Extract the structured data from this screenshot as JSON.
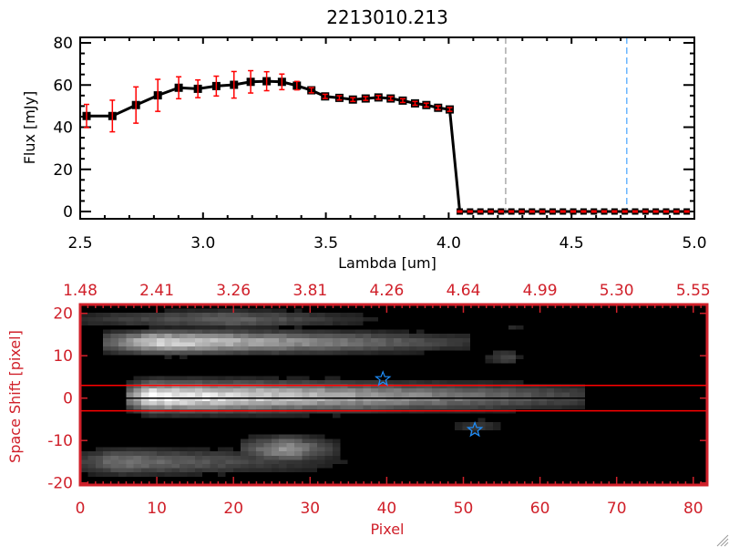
{
  "chart_data": [
    {
      "type": "line",
      "title": "2213010.213",
      "xlabel": "Lambda [um]",
      "ylabel": "Flux [mJy]",
      "xlim": [
        2.5,
        5.0
      ],
      "ylim": [
        -3.5,
        82.6
      ],
      "xticks": [
        "2.5",
        "3.0",
        "3.5",
        "4.0",
        "4.5",
        "5.0"
      ],
      "yticks": [
        "0",
        "20",
        "40",
        "60",
        "80"
      ],
      "series": [
        {
          "name": "flux",
          "color": "#000000",
          "error_color": "#ff0000",
          "x": [
            2.526,
            2.631,
            2.727,
            2.816,
            2.901,
            2.979,
            3.054,
            3.126,
            3.194,
            3.259,
            3.321,
            3.382,
            3.441,
            3.497,
            3.555,
            3.61,
            3.662,
            3.714,
            3.764,
            3.813,
            3.863,
            3.909,
            3.957,
            4.004,
            4.045,
            4.087,
            4.129,
            4.171,
            4.213,
            4.255,
            4.297,
            4.339,
            4.381,
            4.423,
            4.465,
            4.507,
            4.549,
            4.591,
            4.633,
            4.675,
            4.717,
            4.759,
            4.801,
            4.843,
            4.885,
            4.927,
            4.969
          ],
          "y": [
            45.3,
            45.3,
            50.5,
            55.1,
            58.7,
            58.2,
            59.5,
            60.1,
            61.5,
            61.8,
            61.5,
            59.7,
            57.5,
            54.6,
            53.9,
            53.1,
            53.6,
            54.1,
            53.6,
            52.6,
            51.3,
            50.5,
            49.2,
            48.4,
            0,
            0,
            0,
            0,
            0,
            0,
            0,
            0,
            0,
            0,
            0,
            0,
            0,
            0,
            0,
            0,
            0,
            0,
            0,
            0,
            0,
            0,
            0
          ],
          "yerr": [
            5.5,
            7.5,
            8.6,
            7.6,
            5.2,
            4.2,
            4.7,
            6.3,
            5.3,
            4.5,
            3.7,
            2.0,
            1.2,
            1.0,
            1.0,
            0.9,
            0.9,
            0.9,
            0.9,
            0.9,
            0.9,
            0.9,
            0.9,
            0.9,
            0.3,
            0.3,
            0.3,
            0.3,
            0.3,
            0.3,
            0.3,
            0.3,
            0.3,
            0.3,
            0.3,
            0.3,
            0.3,
            0.3,
            0.3,
            0.3,
            0.3,
            0.3,
            0.3,
            0.3,
            0.3,
            0.3,
            0.3
          ]
        }
      ],
      "vlines": [
        {
          "x": 4.232,
          "color": "#808080",
          "style": "dashed"
        },
        {
          "x": 4.725,
          "color": "#1e90ff",
          "style": "dashed"
        }
      ]
    },
    {
      "type": "heatmap",
      "xlabel": "Pixel",
      "ylabel": "Space Shift [pixel]",
      "axis_color": "#d0202a",
      "xlim": [
        0,
        81.8
      ],
      "ylim": [
        -20.8,
        22.2
      ],
      "xticks": [
        "0",
        "10",
        "20",
        "30",
        "40",
        "50",
        "60",
        "70",
        "80"
      ],
      "yticks": [
        "-20",
        "-10",
        "0",
        "10",
        "20"
      ],
      "top_xticks": [
        "1.48",
        "2.41",
        "3.26",
        "3.81",
        "4.26",
        "4.64",
        "4.99",
        "5.30",
        "5.55"
      ],
      "colormap": "grayscale",
      "sources": [
        {
          "x0": 7,
          "x1": 65,
          "y": 0.5,
          "sigma": 2.4,
          "peak": 1.0,
          "peak_x": 9
        },
        {
          "x0": 4,
          "x1": 50,
          "y": 13.5,
          "sigma": 1.8,
          "peak": 0.85,
          "peak_x": 10
        },
        {
          "x0": 0,
          "x1": 40,
          "y": 19,
          "sigma": 1.5,
          "peak": 0.4,
          "peak_x": 20
        },
        {
          "x0": 0,
          "x1": 36,
          "y": -15,
          "sigma": 2.2,
          "peak": 0.45,
          "peak_x": 5
        },
        {
          "x0": 22,
          "x1": 34,
          "y": -12,
          "sigma": 2.2,
          "peak": 0.6,
          "peak_x": 27
        },
        {
          "x0": 54,
          "x1": 58,
          "y": 10,
          "sigma": 1.5,
          "peak": 0.3,
          "peak_x": 56
        },
        {
          "x0": 49,
          "x1": 56,
          "y": -6.5,
          "sigma": 1.3,
          "peak": 0.25,
          "peak_x": 52
        },
        {
          "x0": 56,
          "x1": 58,
          "y": 17,
          "sigma": 1.0,
          "peak": 0.2,
          "peak_x": 57
        }
      ],
      "hlines": [
        {
          "y": 3,
          "color": "#ff0000"
        },
        {
          "y": 0,
          "color": "#000000"
        },
        {
          "y": -3,
          "color": "#ff0000"
        }
      ],
      "markers": [
        {
          "x": 39.5,
          "y": 4.5,
          "symbol": "star",
          "color": "#1e90ff"
        },
        {
          "x": 51.5,
          "y": -7.5,
          "symbol": "star",
          "color": "#1e90ff"
        }
      ]
    }
  ]
}
